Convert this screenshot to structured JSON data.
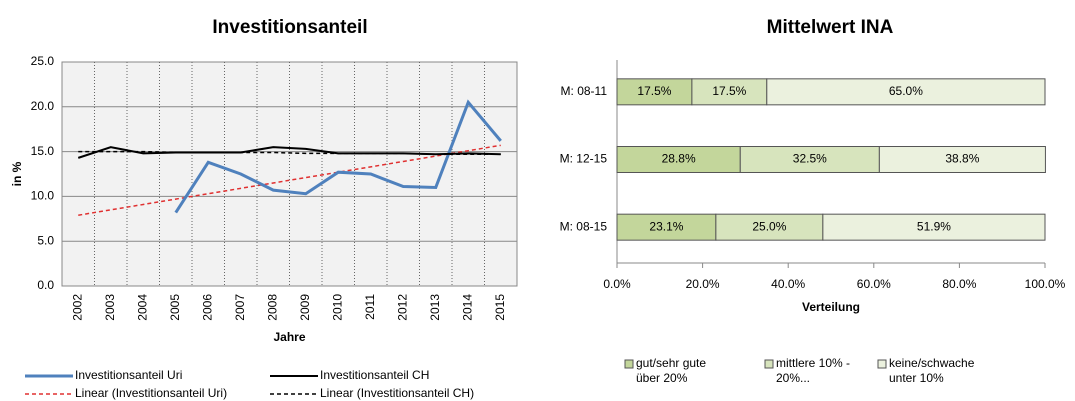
{
  "chart_data": [
    {
      "type": "line",
      "title": "Investitionsanteil",
      "xlabel": "Jahre",
      "ylabel": "in %",
      "categories": [
        "2002",
        "2003",
        "2004",
        "2005",
        "2006",
        "2007",
        "2008",
        "2009",
        "2010",
        "2011",
        "2012",
        "2013",
        "2014",
        "2015"
      ],
      "series": [
        {
          "name": "Investitionsanteil Uri",
          "color": "#4f81bd",
          "dashed": false,
          "values": [
            null,
            null,
            null,
            8.2,
            13.8,
            12.5,
            10.7,
            10.3,
            12.7,
            12.5,
            11.1,
            11.0,
            20.5,
            16.2
          ]
        },
        {
          "name": "Investitionsanteil CH",
          "color": "#000000",
          "dashed": false,
          "values": [
            14.3,
            15.5,
            14.8,
            14.9,
            14.9,
            14.9,
            15.5,
            15.3,
            14.8,
            14.8,
            14.8,
            14.7,
            14.8,
            14.7
          ]
        },
        {
          "name": "Linear (Investitionsanteil Uri)",
          "color": "#e03030",
          "dashed": true,
          "values": [
            7.9,
            8.5,
            9.1,
            9.7,
            10.3,
            10.9,
            11.5,
            12.1,
            12.7,
            13.3,
            13.9,
            14.5,
            15.1,
            15.7
          ]
        },
        {
          "name": "Linear (Investitionsanteil CH)",
          "color": "#000000",
          "dashed": true,
          "values": [
            15.0,
            15.0,
            15.0,
            14.9,
            14.9,
            14.9,
            14.9,
            14.8,
            14.8,
            14.8,
            14.8,
            14.7,
            14.7,
            14.7
          ]
        }
      ],
      "ylim": [
        0,
        25
      ],
      "yticks": [
        {
          "value": 0,
          "label": "0.0"
        },
        {
          "value": 5,
          "label": "5.0"
        },
        {
          "value": 10,
          "label": "10.0"
        },
        {
          "value": 15,
          "label": "15.0"
        },
        {
          "value": 20,
          "label": "20.0"
        },
        {
          "value": 25,
          "label": "25.0"
        }
      ],
      "grid": true
    },
    {
      "type": "stacked_barh",
      "title": "Mittelwert INA",
      "xlabel": "Verteilung",
      "categories": [
        "M: 08-11",
        "M: 12-15",
        "M: 08-15"
      ],
      "series": [
        {
          "name": "gut/sehr gute über 20%",
          "color": "#c3d69b",
          "values": [
            17.5,
            28.8,
            23.1
          ],
          "value_labels": [
            "17.5%",
            "28.8%",
            "23.1%"
          ]
        },
        {
          "name": "mittlere 10% - 20%...",
          "color": "#d7e4bd",
          "values": [
            17.5,
            32.5,
            25.0
          ],
          "value_labels": [
            "17.5%",
            "32.5%",
            "25.0%"
          ]
        },
        {
          "name": "keine/schwache unter 10%",
          "color": "#ebf1de",
          "values": [
            65.0,
            38.8,
            51.9
          ],
          "value_labels": [
            "65.0%",
            "38.8%",
            "51.9%"
          ]
        }
      ],
      "xlim": [
        0,
        100
      ],
      "xticks": [
        {
          "value": 0,
          "label": "0.0%"
        },
        {
          "value": 20,
          "label": "20.0%"
        },
        {
          "value": 40,
          "label": "40.0%"
        },
        {
          "value": 60,
          "label": "60.0%"
        },
        {
          "value": 80,
          "label": "80.0%"
        },
        {
          "value": 100,
          "label": "100.0%"
        }
      ],
      "grid": false
    }
  ]
}
